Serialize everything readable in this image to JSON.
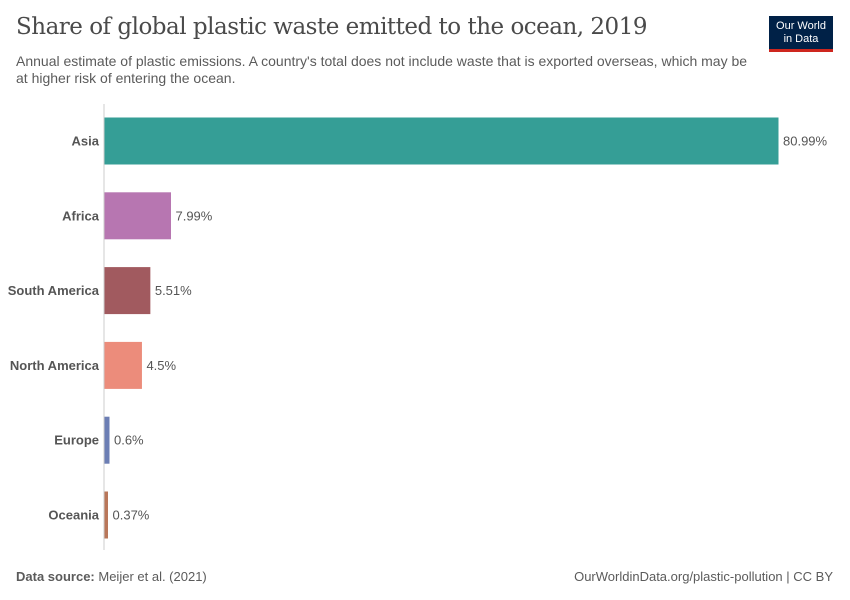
{
  "header": {
    "title": "Share of global plastic waste emitted to the ocean, 2019",
    "subtitle": "Annual estimate of plastic emissions. A country's total does not include waste that is exported overseas, which may be at higher risk of entering the ocean.",
    "logo_line1": "Our World",
    "logo_line2": "in Data"
  },
  "footer": {
    "source_label": "Data source:",
    "source": "Meijer et al. (2021)",
    "url": "OurWorldinData.org/plastic-pollution | CC BY"
  },
  "chart_data": {
    "type": "bar",
    "orientation": "horizontal",
    "categories": [
      "Asia",
      "Africa",
      "South America",
      "North America",
      "Europe",
      "Oceania"
    ],
    "values": [
      80.99,
      7.99,
      5.51,
      4.5,
      0.6,
      0.37
    ],
    "labels": [
      "80.99%",
      "7.99%",
      "5.51%",
      "4.5%",
      "0.6%",
      "0.37%"
    ],
    "colors": [
      "#359e96",
      "#b776b1",
      "#a15a5f",
      "#ec8c7b",
      "#6c7eb4",
      "#b9775a"
    ],
    "unit": "%",
    "xlim": [
      0,
      80.99
    ],
    "grid": false
  }
}
